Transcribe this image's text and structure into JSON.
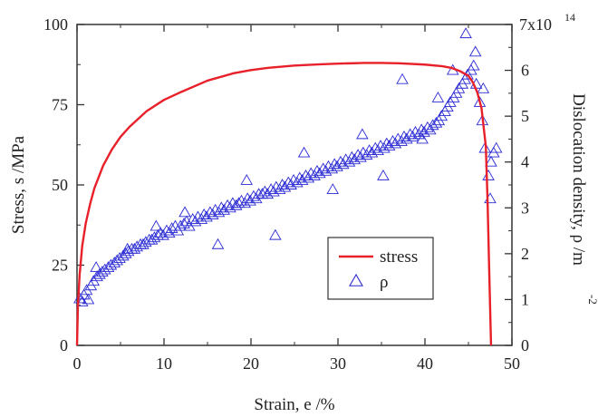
{
  "chart_data": {
    "type": "line+scatter",
    "xlabel": "Strain, e /%",
    "ylabel_left": "Stress, s /MPa",
    "ylabel_right": "Dislocation density, ρ /m",
    "ylabel_right_exponent": "-2",
    "xlim": [
      0,
      50
    ],
    "ylim_left": [
      0,
      100
    ],
    "ylim_right": [
      0,
      700000000000000.0
    ],
    "x_ticks": [
      "0",
      "10",
      "20",
      "30",
      "40",
      "50"
    ],
    "y_left_ticks": [
      "0",
      "25",
      "50",
      "75",
      "100"
    ],
    "y_right_ticks": [
      "0",
      "1",
      "2",
      "3",
      "4",
      "5",
      "6"
    ],
    "y_right_top_tick": {
      "mantissa": "7x10",
      "exponent": "14"
    },
    "grid": false,
    "legend": {
      "position": "inside lower-right"
    },
    "colors": {
      "stress": "#e8202a",
      "rho": "#2a2ad4",
      "axes": "#333333"
    },
    "series": [
      {
        "name": "stress",
        "axis": "left",
        "style": "line",
        "x": [
          0,
          0.1,
          0.3,
          0.6,
          1.0,
          1.5,
          2,
          3,
          4,
          5,
          6,
          8,
          10,
          12,
          15,
          18,
          20,
          22,
          25,
          28,
          30,
          33,
          35,
          37,
          40,
          42,
          43,
          44,
          45,
          45.5,
          46,
          46.5,
          47,
          47.2,
          47.4,
          47.6
        ],
        "y": [
          0,
          12,
          22,
          31,
          38,
          44,
          49,
          56,
          61,
          65,
          68,
          73,
          76.5,
          79,
          82.5,
          84.8,
          85.8,
          86.5,
          87.2,
          87.6,
          87.8,
          88,
          88,
          87.9,
          87.5,
          87,
          86.5,
          85.5,
          84,
          82,
          79,
          74,
          62,
          45,
          22,
          0
        ]
      },
      {
        "name": "ρ",
        "axis": "right",
        "style": "scatter",
        "marker": "open-triangle",
        "x": [
          0.3,
          0.6,
          0.8,
          1.1,
          1.3,
          1.6,
          1.9,
          2.3,
          2.6,
          2.9,
          3.2,
          3.6,
          3.9,
          4.3,
          4.6,
          4.9,
          5.3,
          5.6,
          5.9,
          6.3,
          6.6,
          6.9,
          7.3,
          7.6,
          7.9,
          8.3,
          8.6,
          8.9,
          9.3,
          9.6,
          9.9,
          10.3,
          10.6,
          10.9,
          11.3,
          11.6,
          11.9,
          12.3,
          12.6,
          12.9,
          13.3,
          13.6,
          13.9,
          14.3,
          14.6,
          14.9,
          15.3,
          15.6,
          15.9,
          16.3,
          16.6,
          16.9,
          17.3,
          17.6,
          17.9,
          18.3,
          18.6,
          18.9,
          19.3,
          19.6,
          19.9,
          20.3,
          20.6,
          20.9,
          21.3,
          21.6,
          21.9,
          22.3,
          22.6,
          22.9,
          23.3,
          23.6,
          23.9,
          24.3,
          24.6,
          24.9,
          25.3,
          25.6,
          25.9,
          26.3,
          26.6,
          26.9,
          27.3,
          27.6,
          27.9,
          28.3,
          28.6,
          28.9,
          29.3,
          29.6,
          29.9,
          30.3,
          30.6,
          30.9,
          31.3,
          31.6,
          31.9,
          32.3,
          32.6,
          32.9,
          33.3,
          33.6,
          33.9,
          34.3,
          34.6,
          34.9,
          35.3,
          35.6,
          35.9,
          36.3,
          36.6,
          36.9,
          37.3,
          37.6,
          37.9,
          38.3,
          38.6,
          38.9,
          39.3,
          39.6,
          39.9,
          40.3,
          40.6,
          40.9,
          41.3,
          41.6,
          41.9,
          42.3,
          42.6,
          42.9,
          43.3,
          43.6,
          43.9,
          44.3,
          44.6,
          44.9,
          45.3,
          45.6,
          45.9,
          46.3,
          46.6,
          46.9,
          47.3,
          47.6,
          47.9,
          48.2,
          2.2,
          5.8,
          9.1,
          12.4,
          16.2,
          19.5,
          22.8,
          26.1,
          29.4,
          32.8,
          35.2,
          37.4,
          39.7,
          41.5,
          43.2,
          44.7,
          45.8,
          46.7,
          47.5
        ],
        "y": [
          102000000000000.0,
          95000000000000.0,
          110000000000000.0,
          120000000000000.0,
          100000000000000.0,
          130000000000000.0,
          140000000000000.0,
          150000000000000.0,
          155000000000000.0,
          160000000000000.0,
          165000000000000.0,
          170000000000000.0,
          175000000000000.0,
          180000000000000.0,
          185000000000000.0,
          190000000000000.0,
          195000000000000.0,
          200000000000000.0,
          205000000000000.0,
          210000000000000.0,
          210000000000000.0,
          215000000000000.0,
          220000000000000.0,
          220000000000000.0,
          225000000000000.0,
          230000000000000.0,
          230000000000000.0,
          235000000000000.0,
          240000000000000.0,
          245000000000000.0,
          240000000000000.0,
          250000000000000.0,
          245000000000000.0,
          255000000000000.0,
          260000000000000.0,
          250000000000000.0,
          260000000000000.0,
          265000000000000.0,
          270000000000000.0,
          260000000000000.0,
          275000000000000.0,
          270000000000000.0,
          280000000000000.0,
          275000000000000.0,
          285000000000000.0,
          280000000000000.0,
          290000000000000.0,
          285000000000000.0,
          295000000000000.0,
          290000000000000.0,
          300000000000000.0,
          295000000000000.0,
          305000000000000.0,
          300000000000000.0,
          310000000000000.0,
          305000000000000.0,
          310000000000000.0,
          315000000000000.0,
          310000000000000.0,
          320000000000000.0,
          315000000000000.0,
          325000000000000.0,
          320000000000000.0,
          330000000000000.0,
          330000000000000.0,
          335000000000000.0,
          330000000000000.0,
          340000000000000.0,
          335000000000000.0,
          345000000000000.0,
          340000000000000.0,
          350000000000000.0,
          345000000000000.0,
          355000000000000.0,
          350000000000000.0,
          360000000000000.0,
          355000000000000.0,
          365000000000000.0,
          360000000000000.0,
          370000000000000.0,
          365000000000000.0,
          375000000000000.0,
          370000000000000.0,
          380000000000000.0,
          375000000000000.0,
          385000000000000.0,
          380000000000000.0,
          390000000000000.0,
          385000000000000.0,
          395000000000000.0,
          390000000000000.0,
          400000000000000.0,
          395000000000000.0,
          405000000000000.0,
          400000000000000.0,
          410000000000000.0,
          405000000000000.0,
          415000000000000.0,
          410000000000000.0,
          420000000000000.0,
          415000000000000.0,
          425000000000000.0,
          420000000000000.0,
          430000000000000.0,
          425000000000000.0,
          435000000000000.0,
          430000000000000.0,
          440000000000000.0,
          435000000000000.0,
          445000000000000.0,
          440000000000000.0,
          450000000000000.0,
          445000000000000.0,
          455000000000000.0,
          450000000000000.0,
          460000000000000.0,
          455000000000000.0,
          465000000000000.0,
          460000000000000.0,
          470000000000000.0,
          465000000000000.0,
          475000000000000.0,
          470000000000000.0,
          480000000000000.0,
          485000000000000.0,
          490000000000000.0,
          500000000000000.0,
          510000000000000.0,
          520000000000000.0,
          530000000000000.0,
          540000000000000.0,
          550000000000000.0,
          560000000000000.0,
          570000000000000.0,
          580000000000000.0,
          590000000000000.0,
          600000000000000.0,
          610000000000000.0,
          570000000000000.0,
          530000000000000.0,
          490000000000000.0,
          430000000000000.0,
          370000000000000.0,
          400000000000000.0,
          420000000000000.0,
          430000000000000.0,
          170000000000000.0,
          210000000000000.0,
          260000000000000.0,
          290000000000000.0,
          220000000000000.0,
          360000000000000.0,
          240000000000000.0,
          420000000000000.0,
          340000000000000.0,
          460000000000000.0,
          370000000000000.0,
          580000000000000.0,
          450000000000000.0,
          540000000000000.0,
          600000000000000.0,
          680000000000000.0,
          640000000000000.0,
          560000000000000.0,
          320000000000000.0
        ]
      }
    ]
  }
}
